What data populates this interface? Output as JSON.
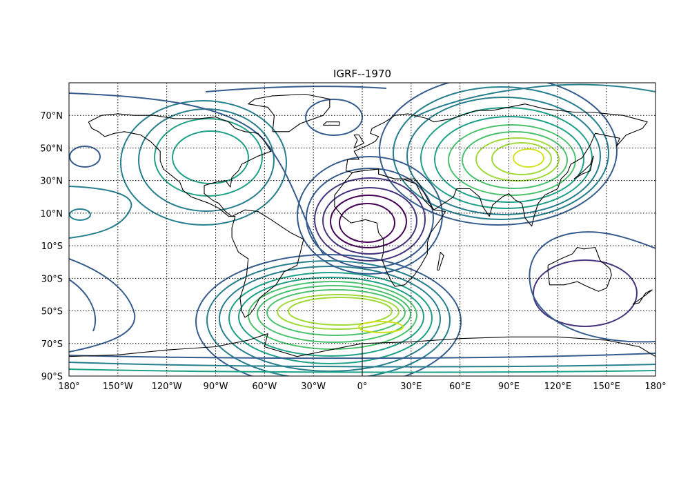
{
  "map": {
    "title": "IGRF--1970",
    "projection": "equirectangular",
    "lon_range": [
      -180,
      180
    ],
    "lat_range": [
      -90,
      90
    ],
    "lon_ticks": [
      {
        "value": -180,
        "label": "180°"
      },
      {
        "value": -150,
        "label": "150°W"
      },
      {
        "value": -120,
        "label": "120°W"
      },
      {
        "value": -90,
        "label": "90°W"
      },
      {
        "value": -60,
        "label": "60°W"
      },
      {
        "value": -30,
        "label": "30°W"
      },
      {
        "value": 0,
        "label": "0°"
      },
      {
        "value": 30,
        "label": "30°E"
      },
      {
        "value": 60,
        "label": "60°E"
      },
      {
        "value": 90,
        "label": "90°E"
      },
      {
        "value": 120,
        "label": "120°E"
      },
      {
        "value": 150,
        "label": "150°E"
      },
      {
        "value": 180,
        "label": "180°"
      }
    ],
    "lat_ticks": [
      {
        "value": 70,
        "label": "70°N"
      },
      {
        "value": 50,
        "label": "50°N"
      },
      {
        "value": 30,
        "label": "30°N"
      },
      {
        "value": 10,
        "label": "10°N"
      },
      {
        "value": -10,
        "label": "10°S"
      },
      {
        "value": -30,
        "label": "30°S"
      },
      {
        "value": -50,
        "label": "50°S"
      },
      {
        "value": -70,
        "label": "70°S"
      },
      {
        "value": -90,
        "label": "90°S"
      }
    ],
    "grid": true,
    "colormap": "viridis"
  }
}
